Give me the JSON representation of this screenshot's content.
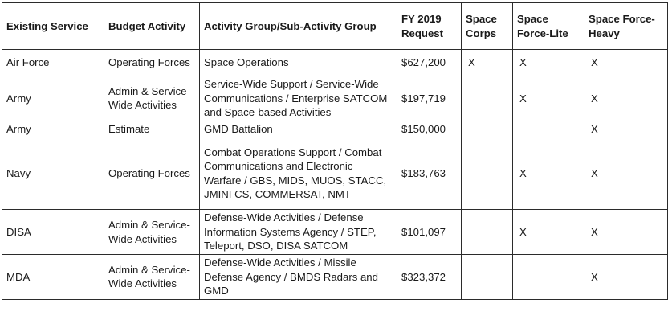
{
  "table": {
    "headers": [
      "Existing Service",
      "Budget Activity",
      "Activity Group/Sub-Activity Group",
      "FY 2019 Request",
      "Space Corps",
      "Space Force-Lite",
      "Space Force-Heavy"
    ],
    "rows": [
      {
        "service": "Air Force",
        "budget_activity": "Operating Forces",
        "activity_group": "Space Operations",
        "request": "$627,200",
        "space_corps": "X",
        "force_lite": "X",
        "force_heavy": "X"
      },
      {
        "service": "Army",
        "budget_activity": "Admin & Service-Wide Activities",
        "activity_group": "Service-Wide Support / Service-Wide Communications / Enterprise SATCOM and Space-based Activities",
        "request": "$197,719",
        "space_corps": "",
        "force_lite": "X",
        "force_heavy": "X"
      },
      {
        "service": "Army",
        "budget_activity": "Estimate",
        "activity_group": "GMD Battalion",
        "request": "$150,000",
        "space_corps": "",
        "force_lite": "",
        "force_heavy": "X"
      },
      {
        "service": "Navy",
        "budget_activity": "Operating Forces",
        "activity_group": "Combat Operations Support / Combat Communications and Electronic Warfare / GBS, MIDS, MUOS, STACC, JMINI CS, COMMERSAT, NMT",
        "request": "$183,763",
        "space_corps": "",
        "force_lite": "X",
        "force_heavy": "X"
      },
      {
        "service": "DISA",
        "budget_activity": "Admin & Service-Wide Activities",
        "activity_group": "Defense-Wide Activities / Defense Information Systems Agency / STEP, Teleport, DSO, DISA SATCOM",
        "request": "$101,097",
        "space_corps": "",
        "force_lite": "X",
        "force_heavy": "X"
      },
      {
        "service": "MDA",
        "budget_activity": "Admin & Service-Wide Activities",
        "activity_group": "Defense-Wide Activities / Missile Defense Agency / BMDS Radars and GMD",
        "request": "$323,372",
        "space_corps": "",
        "force_lite": "",
        "force_heavy": "X"
      }
    ]
  }
}
